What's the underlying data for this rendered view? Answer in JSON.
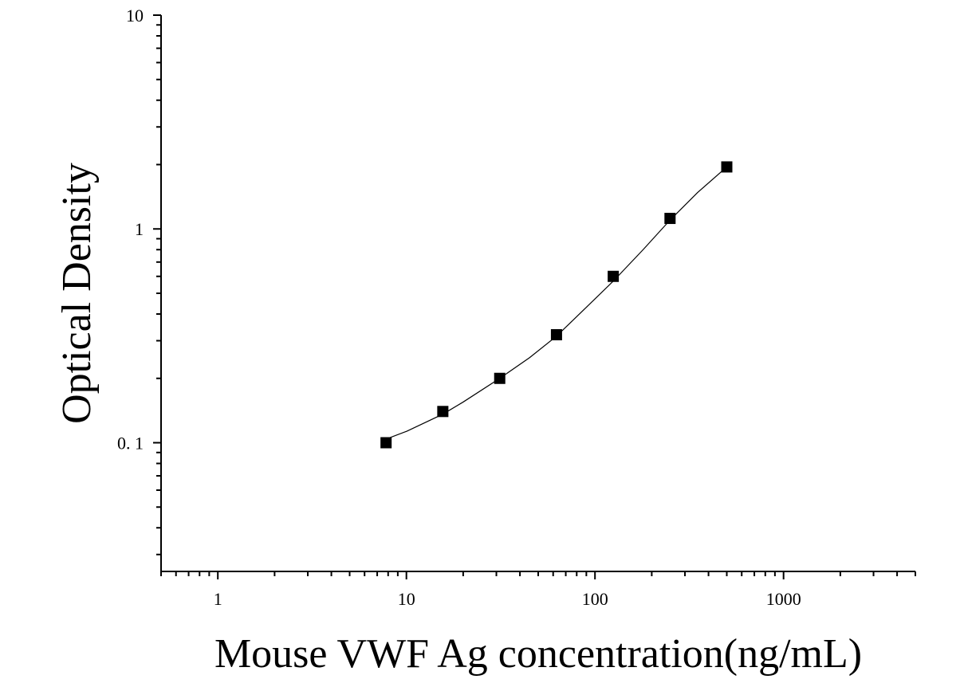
{
  "chart_data": {
    "type": "scatter",
    "title": "",
    "xlabel": "Mouse VWF Ag concentration(ng/mL)",
    "ylabel": "Optical Density",
    "x_scale": "log",
    "y_scale": "log",
    "xlim": [
      0.5,
      5000
    ],
    "ylim": [
      0.025,
      10
    ],
    "x_ticks": [
      {
        "value": 1,
        "label": "1"
      },
      {
        "value": 10,
        "label": "10"
      },
      {
        "value": 100,
        "label": "100"
      },
      {
        "value": 1000,
        "label": "1000"
      }
    ],
    "y_ticks": [
      {
        "value": 0.1,
        "label": "0. 1"
      },
      {
        "value": 1,
        "label": "1"
      },
      {
        "value": 10,
        "label": "10"
      }
    ],
    "grid": false,
    "legend": "none",
    "series": [
      {
        "marker": "square",
        "color": "#000000",
        "x": [
          7.8,
          15.6,
          31.25,
          62.5,
          125,
          250,
          500
        ],
        "y": [
          0.1,
          0.14,
          0.2,
          0.32,
          0.6,
          1.12,
          1.95
        ]
      }
    ],
    "fit_curve": {
      "color": "#000000",
      "x": [
        7.8,
        10,
        15.6,
        20,
        31.25,
        45,
        62.5,
        90,
        125,
        180,
        250,
        350,
        500
      ],
      "y": [
        0.104,
        0.113,
        0.136,
        0.155,
        0.2,
        0.25,
        0.315,
        0.43,
        0.57,
        0.8,
        1.1,
        1.48,
        1.95
      ]
    }
  }
}
